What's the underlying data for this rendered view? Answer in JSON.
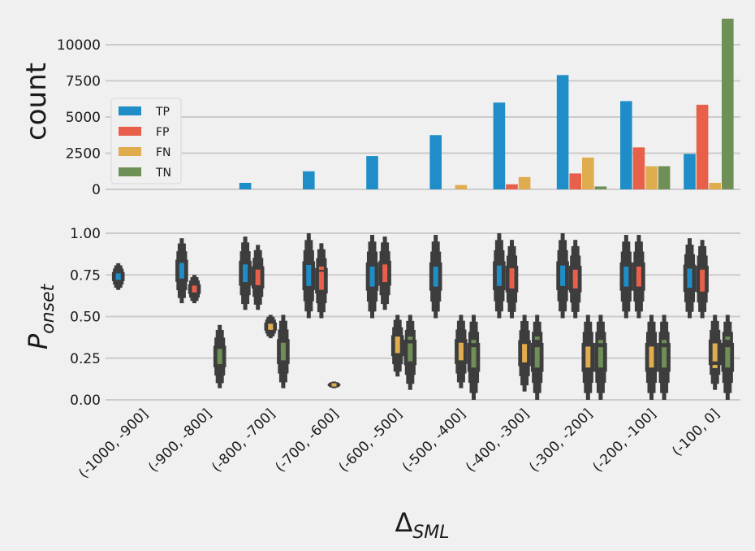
{
  "chart_data": [
    {
      "type": "bar",
      "ylabel": "count",
      "ylim": [
        0,
        12000
      ],
      "yticks": [
        0,
        2500,
        5000,
        7500,
        10000
      ],
      "grid": true,
      "legend_position": "center-left",
      "categories": [
        "(-1000, -900]",
        "(-900, -800]",
        "(-800, -700]",
        "(-700, -600]",
        "(-600, -500]",
        "(-500, -400]",
        "(-400, -300]",
        "(-300, -200]",
        "(-200, -100]",
        "(-100, 0]"
      ],
      "series": [
        {
          "name": "TP",
          "color": "#1f8ec8",
          "values": [
            0,
            0,
            450,
            1250,
            2300,
            3750,
            6000,
            7900,
            6100,
            2450
          ]
        },
        {
          "name": "FP",
          "color": "#e8604a",
          "values": [
            0,
            0,
            0,
            0,
            0,
            0,
            350,
            1100,
            2900,
            5850
          ]
        },
        {
          "name": "FN",
          "color": "#e0ad4e",
          "values": [
            0,
            0,
            0,
            0,
            0,
            300,
            850,
            2200,
            1600,
            450
          ]
        },
        {
          "name": "TN",
          "color": "#6e8f55",
          "values": [
            0,
            0,
            0,
            0,
            0,
            0,
            0,
            200,
            1600,
            11800
          ]
        }
      ]
    },
    {
      "type": "boxen",
      "ylabel": "P_onset",
      "ylabel_main": "P",
      "ylabel_sub": "onset",
      "xlabel_main": "Δ",
      "xlabel_sub": "SML",
      "ylim": [
        -0.02,
        1.02
      ],
      "yticks": [
        "0.00",
        "0.25",
        "0.50",
        "0.75",
        "1.00"
      ],
      "grid": true,
      "box_outline_color": "#3d3d3d",
      "categories": [
        "(-1000, -900]",
        "(-900, -800]",
        "(-800, -700]",
        "(-700, -600]",
        "(-600, -500]",
        "(-500, -400]",
        "(-400, -300]",
        "(-300, -200]",
        "(-200, -100]",
        "(-100, 0]"
      ],
      "series": [
        {
          "name": "TP",
          "color": "#1f8ec8",
          "values": [
            [
              0.66,
              0.82
            ],
            [
              0.58,
              0.97
            ],
            [
              0.54,
              0.98
            ],
            [
              0.49,
              1.0
            ],
            [
              0.49,
              0.99
            ],
            [
              0.49,
              0.99
            ],
            [
              0.49,
              1.0
            ],
            [
              0.49,
              1.0
            ],
            [
              0.49,
              0.99
            ],
            [
              0.49,
              0.97
            ]
          ],
          "medians": [
            0.73,
            0.8,
            0.8,
            0.8,
            0.79,
            0.77,
            0.77,
            0.75,
            0.75,
            0.74
          ]
        },
        {
          "name": "FP",
          "color": "#e8604a",
          "values": [
            null,
            [
              0.58,
              0.75
            ],
            [
              0.54,
              0.93
            ],
            [
              0.49,
              0.94
            ],
            [
              0.54,
              0.98
            ],
            null,
            [
              0.49,
              0.96
            ],
            [
              0.49,
              0.96
            ],
            [
              0.49,
              0.99
            ],
            [
              0.49,
              0.96
            ]
          ],
          "medians": [
            null,
            0.67,
            0.71,
            0.79,
            0.78,
            null,
            0.78,
            0.73,
            0.72,
            0.66
          ]
        },
        {
          "name": "FN",
          "color": "#e0ad4e",
          "values": [
            null,
            null,
            [
              0.37,
              0.51
            ],
            [
              0.07,
              0.11
            ],
            [
              0.14,
              0.51
            ],
            [
              0.07,
              0.51
            ],
            [
              0.05,
              0.51
            ],
            [
              0.0,
              0.51
            ],
            [
              0.0,
              0.51
            ],
            [
              0.06,
              0.51
            ]
          ],
          "medians": [
            null,
            null,
            0.43,
            0.09,
            0.37,
            0.3,
            0.32,
            0.31,
            0.31,
            0.2
          ]
        },
        {
          "name": "TN",
          "color": "#6e8f55",
          "values": [
            null,
            [
              0.07,
              0.45
            ],
            [
              0.07,
              0.51
            ],
            null,
            [
              0.06,
              0.51
            ],
            [
              0.0,
              0.51
            ],
            [
              0.0,
              0.51
            ],
            [
              0.0,
              0.51
            ],
            [
              0.0,
              0.51
            ],
            [
              0.0,
              0.51
            ]
          ],
          "medians": [
            null,
            0.26,
            0.31,
            null,
            0.37,
            0.35,
            0.37,
            0.35,
            0.35,
            0.37
          ]
        }
      ]
    }
  ]
}
